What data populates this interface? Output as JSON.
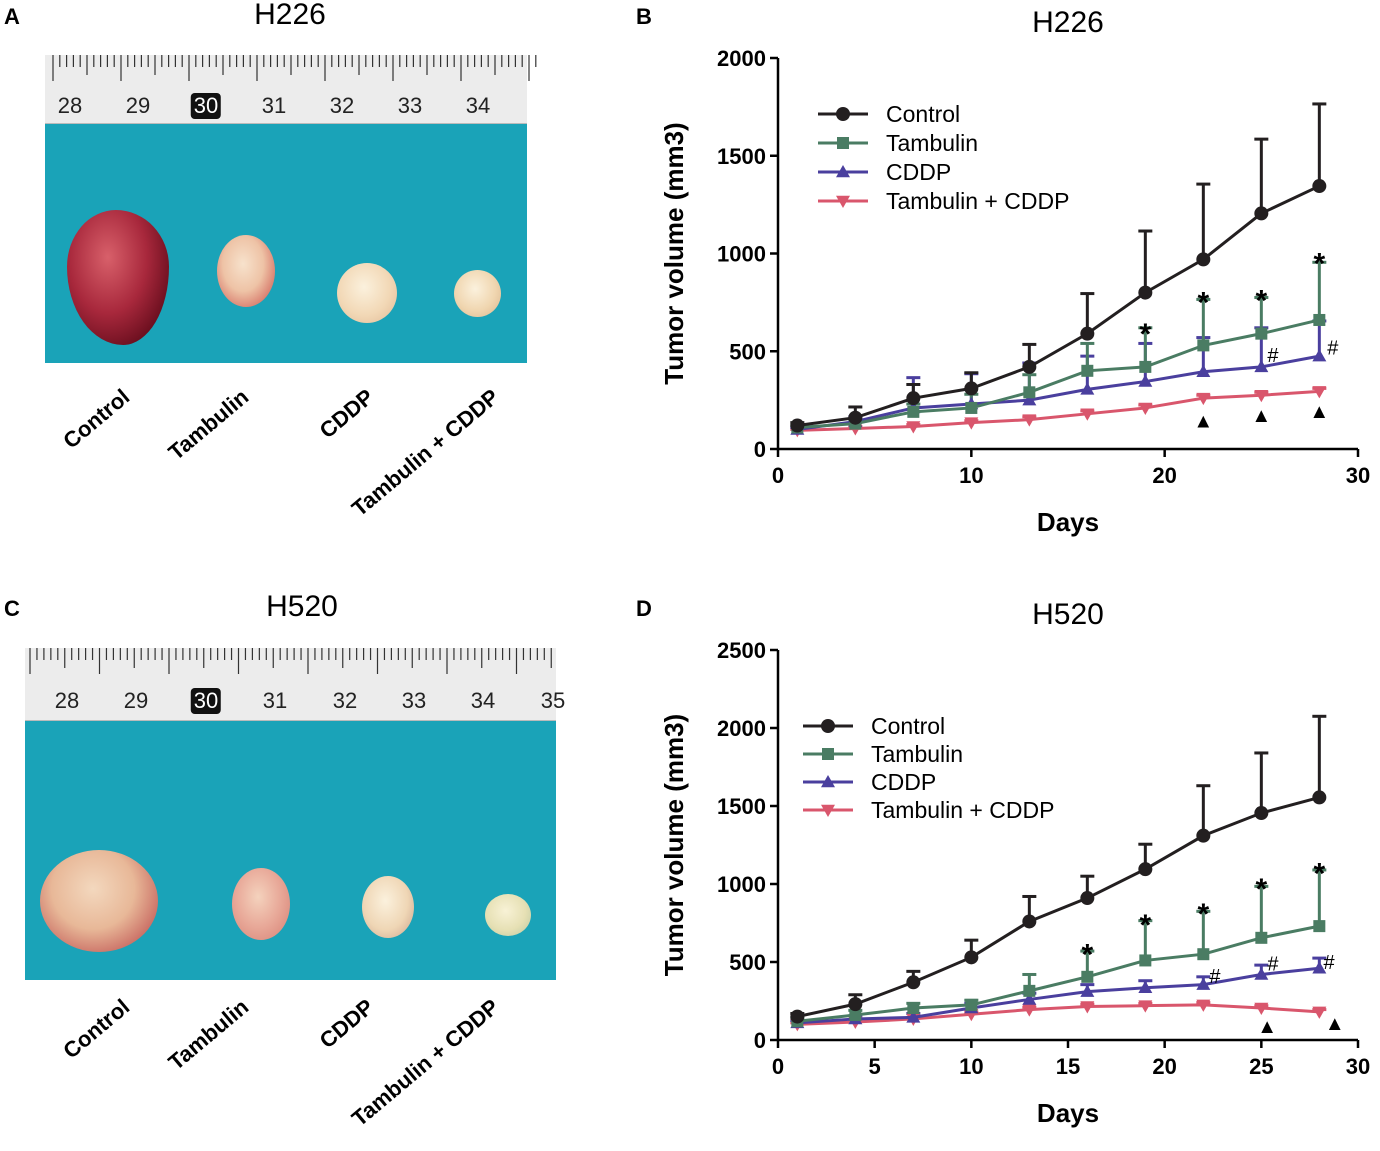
{
  "panels": {
    "a": {
      "letter": "A",
      "title": "H226",
      "ruler": [
        "28",
        "29",
        "30",
        "31",
        "32",
        "33",
        "34"
      ],
      "ruler_highlight": "30",
      "samples": [
        "Control",
        "Tambulin",
        "CDDP",
        "Tambulin + CDDP"
      ]
    },
    "c": {
      "letter": "C",
      "title": "H520",
      "ruler": [
        "28",
        "29",
        "30",
        "31",
        "32",
        "33",
        "34",
        "35"
      ],
      "ruler_highlight": "30",
      "samples": [
        "Control",
        "Tambulin",
        "CDDP",
        "Tambulin + CDDP"
      ]
    },
    "b": {
      "letter": "B"
    },
    "d": {
      "letter": "D"
    }
  },
  "colors": {
    "control": "#231f20",
    "tambulin": "#4a7c63",
    "cddp": "#4a3f9e",
    "combo": "#d9566c",
    "background": "#1aa3b8"
  },
  "chart_data": [
    {
      "id": "b",
      "type": "line",
      "title": "H226",
      "xlabel": "Days",
      "ylabel": "Tumor volume (mm3)",
      "xlim": [
        0,
        30
      ],
      "ylim": [
        0,
        2000
      ],
      "xticks": [
        0,
        10,
        20,
        30
      ],
      "yticks": [
        0,
        500,
        1000,
        1500,
        2000
      ],
      "x": [
        1,
        4,
        7,
        10,
        13,
        16,
        19,
        22,
        25,
        28
      ],
      "series": [
        {
          "name": "Control",
          "marker": "circle",
          "values": [
            120,
            160,
            260,
            310,
            420,
            590,
            800,
            970,
            1205,
            1345
          ],
          "error": [
            15,
            55,
            70,
            80,
            115,
            205,
            315,
            385,
            380,
            420
          ]
        },
        {
          "name": "Tambulin",
          "marker": "square",
          "values": [
            110,
            130,
            190,
            210,
            290,
            400,
            420,
            530,
            590,
            660
          ],
          "error": [
            10,
            20,
            40,
            70,
            90,
            140,
            200,
            235,
            185,
            295
          ]
        },
        {
          "name": "CDDP",
          "marker": "triangle-up",
          "values": [
            100,
            140,
            210,
            230,
            250,
            305,
            345,
            395,
            420,
            475
          ],
          "error": [
            10,
            25,
            155,
            155,
            190,
            170,
            195,
            175,
            200,
            180
          ]
        },
        {
          "name": "Tambulin + CDDP",
          "marker": "triangle-down",
          "values": [
            95,
            105,
            115,
            135,
            150,
            180,
            210,
            260,
            275,
            295
          ],
          "error": [
            5,
            10,
            10,
            10,
            15,
            15,
            15,
            15,
            15,
            15
          ]
        }
      ],
      "annotations": [
        {
          "x": 19,
          "y": 630,
          "text": "*",
          "kind": "star"
        },
        {
          "x": 22,
          "y": 790,
          "text": "*",
          "kind": "star"
        },
        {
          "x": 25,
          "y": 800,
          "text": "*",
          "kind": "star"
        },
        {
          "x": 28,
          "y": 990,
          "text": "*",
          "kind": "star"
        },
        {
          "x": 25.6,
          "y": 480,
          "text": "#",
          "kind": "hash"
        },
        {
          "x": 28.7,
          "y": 520,
          "text": "#",
          "kind": "hash"
        },
        {
          "x": 22,
          "y": 145,
          "text": "▲",
          "kind": "tri"
        },
        {
          "x": 25,
          "y": 175,
          "text": "▲",
          "kind": "tri"
        },
        {
          "x": 28,
          "y": 195,
          "text": "▲",
          "kind": "tri"
        }
      ]
    },
    {
      "id": "d",
      "type": "line",
      "title": "H520",
      "xlabel": "Days",
      "ylabel": "Tumor volume (mm3)",
      "xlim": [
        0,
        30
      ],
      "ylim": [
        0,
        2500
      ],
      "xticks": [
        0,
        5,
        10,
        15,
        20,
        25,
        30
      ],
      "yticks": [
        0,
        500,
        1000,
        1500,
        2000,
        2500
      ],
      "x": [
        1,
        4,
        7,
        10,
        13,
        16,
        19,
        22,
        25,
        28
      ],
      "series": [
        {
          "name": "Control",
          "marker": "circle",
          "values": [
            150,
            230,
            370,
            530,
            760,
            910,
            1095,
            1310,
            1455,
            1555
          ],
          "error": [
            20,
            60,
            70,
            110,
            160,
            140,
            160,
            320,
            385,
            520
          ]
        },
        {
          "name": "Tambulin",
          "marker": "square",
          "values": [
            120,
            160,
            205,
            225,
            315,
            405,
            510,
            550,
            655,
            730
          ],
          "error": [
            20,
            30,
            30,
            30,
            105,
            165,
            255,
            275,
            330,
            360
          ]
        },
        {
          "name": "CDDP",
          "marker": "triangle-up",
          "values": [
            110,
            135,
            145,
            205,
            260,
            310,
            335,
            355,
            420,
            460
          ],
          "error": [
            15,
            20,
            25,
            30,
            40,
            45,
            45,
            50,
            60,
            65
          ]
        },
        {
          "name": "Tambulin + CDDP",
          "marker": "triangle-down",
          "values": [
            100,
            115,
            135,
            165,
            195,
            215,
            220,
            225,
            205,
            180
          ],
          "error": [
            10,
            10,
            10,
            15,
            15,
            15,
            15,
            15,
            15,
            15
          ]
        }
      ],
      "annotations": [
        {
          "x": 16,
          "y": 600,
          "text": "*",
          "kind": "star"
        },
        {
          "x": 19,
          "y": 790,
          "text": "*",
          "kind": "star"
        },
        {
          "x": 22,
          "y": 860,
          "text": "*",
          "kind": "star"
        },
        {
          "x": 25,
          "y": 1020,
          "text": "*",
          "kind": "star"
        },
        {
          "x": 28,
          "y": 1120,
          "text": "*",
          "kind": "star"
        },
        {
          "x": 22.6,
          "y": 410,
          "text": "#",
          "kind": "hash"
        },
        {
          "x": 25.6,
          "y": 490,
          "text": "#",
          "kind": "hash"
        },
        {
          "x": 28.5,
          "y": 500,
          "text": "#",
          "kind": "hash"
        },
        {
          "x": 25.3,
          "y": 90,
          "text": "▲",
          "kind": "tri"
        },
        {
          "x": 28.8,
          "y": 110,
          "text": "▲",
          "kind": "tri"
        }
      ]
    }
  ]
}
